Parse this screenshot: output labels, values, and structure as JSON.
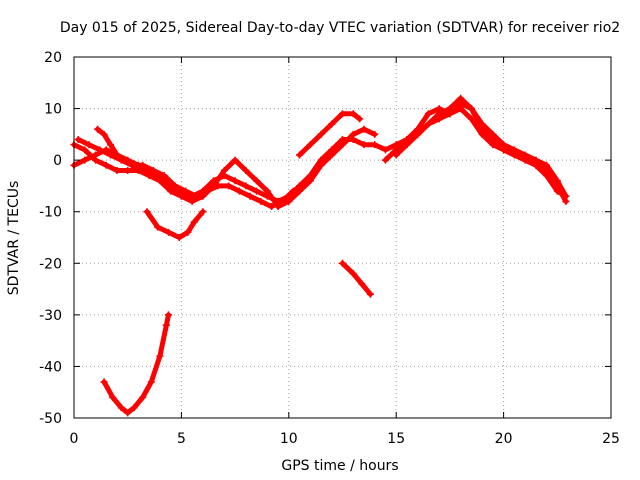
{
  "chart_data": {
    "type": "line",
    "title": "Day 015 of 2025, Sidereal Day-to-day VTEC variation (SDTVAR) for receiver rio2",
    "xlabel": "GPS time / hours",
    "ylabel": "SDTVAR / TECUs",
    "xlim": [
      0,
      25
    ],
    "ylim": [
      -50,
      20
    ],
    "xticks": [
      0,
      5,
      10,
      15,
      20,
      25
    ],
    "yticks": [
      -50,
      -40,
      -30,
      -20,
      -10,
      0,
      10,
      20
    ],
    "grid": true,
    "color": "#ff0000",
    "series": [
      {
        "name": "arc-1",
        "points": [
          [
            0.0,
            -1
          ],
          [
            0.5,
            0
          ],
          [
            1.0,
            1
          ],
          [
            1.5,
            2
          ],
          [
            2.0,
            1
          ],
          [
            2.5,
            0
          ],
          [
            3.0,
            -1
          ],
          [
            3.5,
            -2
          ],
          [
            4.0,
            -3
          ],
          [
            4.5,
            -5
          ],
          [
            5.0,
            -6
          ],
          [
            5.5,
            -7
          ],
          [
            6.0,
            -6
          ],
          [
            6.5,
            -4
          ],
          [
            7.0,
            -3
          ],
          [
            7.5,
            -4
          ],
          [
            8.0,
            -5
          ],
          [
            8.5,
            -6
          ],
          [
            9.0,
            -7
          ],
          [
            9.5,
            -8
          ],
          [
            10.0,
            -7
          ],
          [
            10.5,
            -5
          ],
          [
            11.0,
            -3
          ],
          [
            11.5,
            0
          ],
          [
            12.0,
            2
          ],
          [
            12.5,
            4
          ],
          [
            13.0,
            4
          ],
          [
            13.5,
            3
          ],
          [
            14.0,
            3
          ],
          [
            14.5,
            2
          ],
          [
            15.0,
            3
          ],
          [
            15.5,
            4
          ],
          [
            16.0,
            5
          ],
          [
            16.5,
            7
          ],
          [
            17.0,
            8
          ],
          [
            17.5,
            9
          ],
          [
            18.0,
            10
          ],
          [
            18.5,
            8
          ],
          [
            19.0,
            5
          ],
          [
            19.5,
            3
          ],
          [
            20.0,
            2
          ],
          [
            20.5,
            1
          ],
          [
            21.0,
            1
          ],
          [
            21.5,
            0
          ],
          [
            22.0,
            -1
          ],
          [
            22.5,
            -4
          ],
          [
            22.9,
            -7
          ]
        ]
      },
      {
        "name": "arc-2",
        "points": [
          [
            0.0,
            3
          ],
          [
            0.5,
            2
          ],
          [
            1.0,
            0
          ],
          [
            1.5,
            -1
          ],
          [
            2.0,
            -2
          ],
          [
            2.5,
            -2
          ],
          [
            3.0,
            -2
          ],
          [
            3.5,
            -3
          ],
          [
            4.0,
            -4
          ],
          [
            4.5,
            -6
          ],
          [
            5.0,
            -7
          ],
          [
            5.5,
            -8
          ],
          [
            6.0,
            -7
          ],
          [
            6.5,
            -5
          ],
          [
            7.0,
            -2
          ],
          [
            7.5,
            0
          ],
          [
            8.0,
            -2
          ],
          [
            8.5,
            -4
          ],
          [
            9.0,
            -6
          ],
          [
            9.5,
            -9
          ],
          [
            10.0,
            -8
          ],
          [
            10.5,
            -6
          ],
          [
            11.0,
            -4
          ],
          [
            11.5,
            -1
          ],
          [
            12.0,
            1
          ],
          [
            12.5,
            3
          ],
          [
            13.0,
            5
          ],
          [
            13.5,
            6
          ],
          [
            14.0,
            5
          ]
        ]
      },
      {
        "name": "arc-3",
        "points": [
          [
            0.2,
            4
          ],
          [
            0.7,
            3
          ],
          [
            1.2,
            2
          ],
          [
            1.7,
            1
          ],
          [
            2.2,
            0
          ],
          [
            2.7,
            -1
          ],
          [
            3.2,
            -1
          ],
          [
            3.7,
            -2
          ],
          [
            4.2,
            -3
          ],
          [
            4.7,
            -5
          ],
          [
            5.2,
            -6
          ],
          [
            5.7,
            -7
          ],
          [
            6.2,
            -6
          ],
          [
            6.7,
            -5
          ],
          [
            7.2,
            -5
          ],
          [
            7.7,
            -6
          ],
          [
            8.2,
            -7
          ],
          [
            8.7,
            -8
          ],
          [
            9.2,
            -9
          ],
          [
            9.7,
            -8
          ],
          [
            10.2,
            -6
          ]
        ]
      },
      {
        "name": "arc-4",
        "points": [
          [
            1.1,
            6
          ],
          [
            1.4,
            5
          ],
          [
            1.7,
            3
          ],
          [
            2.0,
            1
          ],
          [
            2.3,
            0
          ],
          [
            2.7,
            -1
          ],
          [
            3.2,
            -2
          ]
        ]
      },
      {
        "name": "arc-5",
        "points": [
          [
            10.5,
            1
          ],
          [
            11.0,
            3
          ],
          [
            11.5,
            5
          ],
          [
            12.0,
            7
          ],
          [
            12.5,
            9
          ],
          [
            13.0,
            9
          ],
          [
            13.3,
            8
          ]
        ]
      },
      {
        "name": "arc-6",
        "points": [
          [
            14.5,
            0
          ],
          [
            15.0,
            2
          ],
          [
            15.5,
            4
          ],
          [
            16.0,
            6
          ],
          [
            16.5,
            9
          ],
          [
            17.0,
            10
          ],
          [
            17.5,
            9
          ],
          [
            18.0,
            11
          ],
          [
            18.5,
            10
          ],
          [
            19.0,
            7
          ],
          [
            19.5,
            5
          ],
          [
            20.0,
            3
          ],
          [
            20.5,
            2
          ],
          [
            21.0,
            1
          ],
          [
            21.5,
            0
          ],
          [
            22.0,
            -2
          ],
          [
            22.5,
            -5
          ],
          [
            22.9,
            -8
          ]
        ]
      },
      {
        "name": "arc-7",
        "points": [
          [
            15.0,
            1
          ],
          [
            15.5,
            3
          ],
          [
            16.0,
            5
          ],
          [
            16.5,
            7
          ],
          [
            17.0,
            9
          ],
          [
            17.5,
            10
          ],
          [
            18.0,
            12
          ],
          [
            18.5,
            10
          ],
          [
            19.0,
            6
          ],
          [
            19.5,
            4
          ],
          [
            20.0,
            2
          ],
          [
            20.5,
            1
          ],
          [
            21.0,
            0
          ],
          [
            21.5,
            -1
          ],
          [
            22.0,
            -3
          ],
          [
            22.5,
            -6
          ],
          [
            22.9,
            -7
          ]
        ]
      },
      {
        "name": "arc-8",
        "points": [
          [
            3.4,
            -10
          ],
          [
            3.9,
            -13
          ],
          [
            4.4,
            -14
          ],
          [
            4.9,
            -15
          ],
          [
            5.3,
            -14
          ],
          [
            5.6,
            -12
          ],
          [
            6.0,
            -10
          ]
        ]
      },
      {
        "name": "arc-9",
        "points": [
          [
            12.5,
            -20
          ],
          [
            13.0,
            -22
          ],
          [
            13.4,
            -24
          ],
          [
            13.8,
            -26
          ]
        ]
      },
      {
        "name": "arc-10",
        "points": [
          [
            1.4,
            -43
          ],
          [
            1.8,
            -46
          ],
          [
            2.2,
            -48
          ],
          [
            2.5,
            -49
          ],
          [
            2.8,
            -48
          ],
          [
            3.2,
            -46
          ],
          [
            3.6,
            -43
          ],
          [
            4.0,
            -38
          ],
          [
            4.3,
            -32
          ],
          [
            4.4,
            -30
          ]
        ]
      }
    ]
  }
}
